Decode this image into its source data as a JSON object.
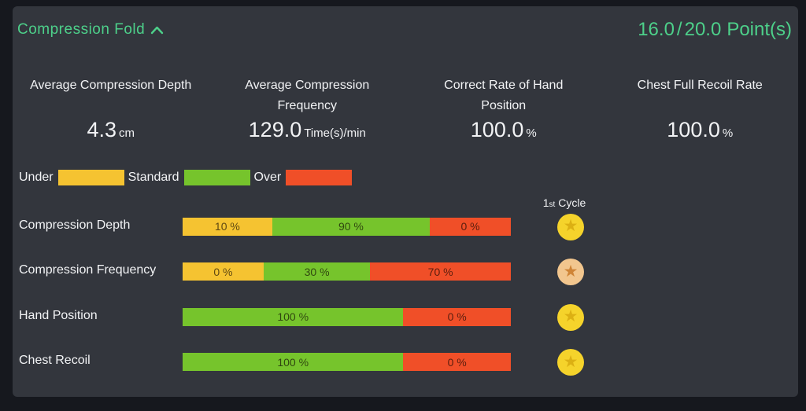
{
  "header": {
    "title": "Compression Fold",
    "score": {
      "current": "16.0",
      "separator": "/",
      "total": "20.0",
      "unit": "Point(s)"
    }
  },
  "stats": [
    {
      "title": "Average Compression Depth",
      "value": "4.3",
      "unit": "cm"
    },
    {
      "title": "Average Compression Frequency",
      "value": "129.0",
      "unit": "Time(s)/min"
    },
    {
      "title": "Correct Rate of Hand Position",
      "value": "100.0",
      "unit": "%"
    },
    {
      "title": "Chest Full Recoil Rate",
      "value": "100.0",
      "unit": "%"
    }
  ],
  "legend": [
    {
      "label": "Under",
      "band": "Under"
    },
    {
      "label": "Standard",
      "band": "Standard"
    },
    {
      "label": "Over",
      "band": "Over"
    }
  ],
  "cycle_header": {
    "number": "1",
    "ordinal": "st",
    "word": "Cycle"
  },
  "chart_data": {
    "type": "bar",
    "orientation": "horizontal",
    "stacked": true,
    "unit": "%",
    "categories": [
      "Compression Depth",
      "Compression Frequency",
      "Hand Position",
      "Chest Recoil"
    ],
    "series": [
      {
        "name": "Under",
        "values": [
          10,
          0,
          null,
          null
        ]
      },
      {
        "name": "Standard",
        "values": [
          90,
          30,
          100,
          100
        ]
      },
      {
        "name": "Over",
        "values": [
          0,
          70,
          0,
          0
        ]
      }
    ],
    "segment_labels": [
      [
        "10 %",
        "90 %",
        "0 %"
      ],
      [
        "0 %",
        "30 %",
        "70 %"
      ],
      [
        "100 %",
        "0 %"
      ],
      [
        "100 %",
        "0 %"
      ]
    ],
    "ratings": [
      "gold",
      "bronze",
      "gold",
      "gold"
    ],
    "column_header": "1st Cycle",
    "legend_position": "top-left"
  },
  "colors": {
    "page_bg": "#16181e",
    "panel_bg": "#33363d",
    "accent_green": "#4dd08a",
    "bands": {
      "Under": "#f5c331",
      "Standard": "#76c42c",
      "Over": "#f04f28"
    },
    "medals": {
      "gold": {
        "circle": "#f5d32b",
        "star": "#dcb013"
      },
      "bronze": {
        "circle": "#f2c68e",
        "star": "#cf8436"
      }
    }
  }
}
